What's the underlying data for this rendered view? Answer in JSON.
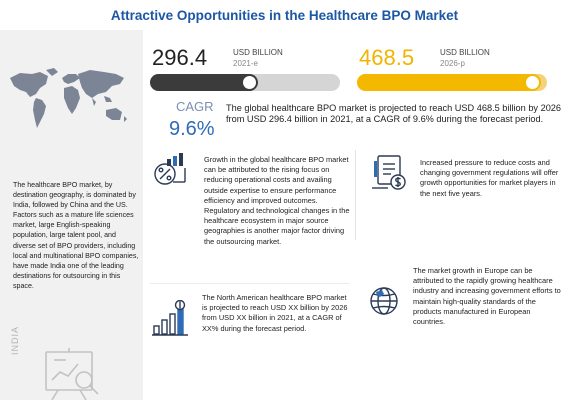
{
  "title": "Attractive Opportunities in the Healthcare BPO Market",
  "metrics": [
    {
      "value": "296.4",
      "unit": "USD BILLION",
      "year": "2021-e",
      "fill": 0.57
    },
    {
      "value": "468.5",
      "unit": "USD BILLION",
      "year": "2026-p",
      "fill": 0.97
    }
  ],
  "cagr": {
    "label": "CAGR",
    "value": "9.6%",
    "text": "The global healthcare BPO market is projected to reach USD 468.5 billion by 2026 from USD 296.4 billion in 2021, at a CAGR of 9.6% during the forecast period."
  },
  "left_panel": {
    "text": "The healthcare BPO market, by destination geography, is dominated by India, followed by China and the US. Factors such as a mature life sciences market, large English-speaking population, large talent pool, and diverse set of BPO providers, including local and multinational BPO companies, have made India one of the leading destinations for outsourcing in this space.",
    "country_label": "INDIA"
  },
  "blocks": [
    {
      "icon": "growth-chart-percent-icon",
      "text": "Growth in the global healthcare BPO market can be attributed to the rising focus on reducing operational costs and availing outside expertise to ensure performance efficiency and improved outcomes. Regulatory and technological changes in the healthcare ecosystem in major source geographies is another major factor driving the outsourcing market."
    },
    {
      "icon": "regulation-document-dollar-icon",
      "text": "Increased pressure to reduce costs and changing government regulations will offer growth opportunities for market players in the next five years."
    },
    {
      "icon": "rising-bar-chart-dollar-icon",
      "text": "The North American healthcare BPO market is projected to reach USD XX billion by 2026 from USD XX billion in 2021, at a CAGR of XX% during the forecast period."
    },
    {
      "icon": "globe-europe-icon",
      "text": "The market growth in Europe can be attributed to the rapidly growing healthcare industry and increasing government efforts to maintain high-quality standards of the products manufactured in European countries."
    }
  ],
  "colors": {
    "title": "#1c57a5",
    "accent_yellow": "#f5b800",
    "accent_blue": "#2e6cb5",
    "dark_bar": "#3b3b3b"
  }
}
